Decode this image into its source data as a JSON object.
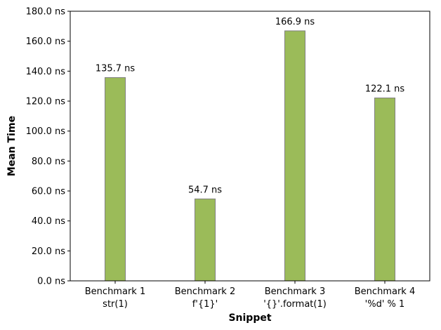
{
  "chart_data": {
    "type": "bar",
    "categories": [
      {
        "line1": "Benchmark 1",
        "line2": "str(1)"
      },
      {
        "line1": "Benchmark 2",
        "line2": "f'{1}'"
      },
      {
        "line1": "Benchmark 3",
        "line2": "'{}'.format(1)"
      },
      {
        "line1": "Benchmark 4",
        "line2": "'%d' % 1"
      }
    ],
    "values": [
      135.7,
      54.7,
      166.9,
      122.1
    ],
    "data_labels": [
      "135.7 ns",
      "54.7 ns",
      "166.9 ns",
      "122.1 ns"
    ],
    "xlabel": "Snippet",
    "ylabel": "Mean Time",
    "ylim": [
      0,
      180
    ],
    "yticks": [
      0,
      20,
      40,
      60,
      80,
      100,
      120,
      140,
      160,
      180
    ],
    "ytick_labels": [
      "0.0 ns",
      "20.0 ns",
      "40.0 ns",
      "60.0 ns",
      "80.0 ns",
      "100.0 ns",
      "120.0 ns",
      "140.0 ns",
      "160.0 ns",
      "180.0 ns"
    ],
    "bar_color": "#9bbb59",
    "bar_edge_color": "#808080",
    "grid": false,
    "legend": "none"
  }
}
